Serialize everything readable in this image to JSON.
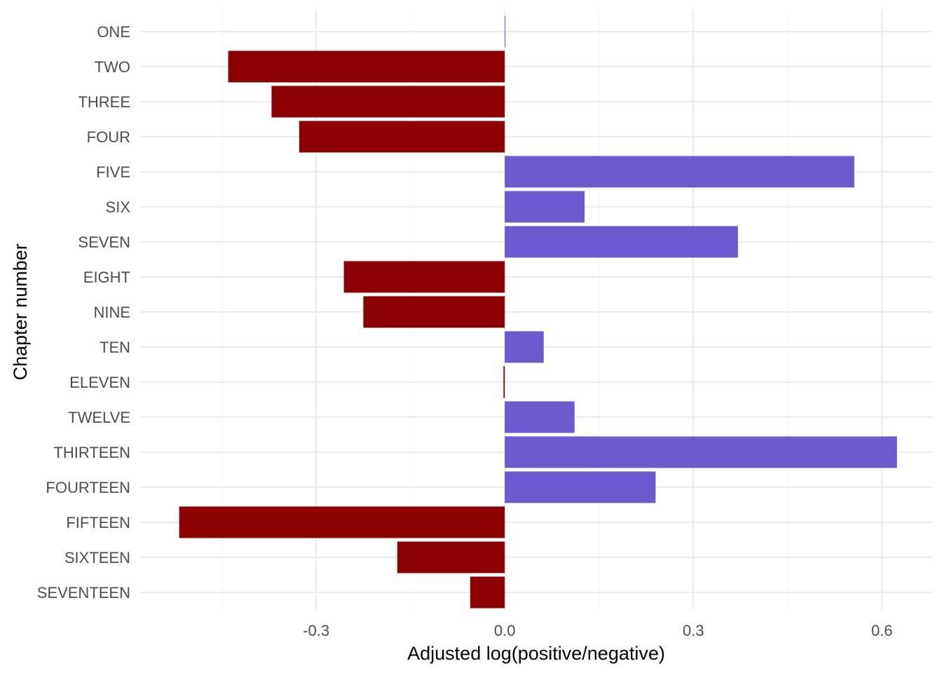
{
  "chart_data": {
    "type": "bar",
    "orientation": "horizontal",
    "title": "",
    "xlabel": "Adjusted log(positive/negative)",
    "ylabel": "Chapter number",
    "categories": [
      "ONE",
      "TWO",
      "THREE",
      "FOUR",
      "FIVE",
      "SIX",
      "SEVEN",
      "EIGHT",
      "NINE",
      "TEN",
      "ELEVEN",
      "TWELVE",
      "THIRTEEN",
      "FOURTEEN",
      "FIFTEEN",
      "SIXTEEN",
      "SEVENTEEN"
    ],
    "values": [
      0.001,
      -0.44,
      -0.371,
      -0.327,
      0.556,
      0.127,
      0.371,
      -0.256,
      -0.225,
      0.062,
      -0.002,
      0.111,
      0.624,
      0.24,
      -0.518,
      -0.171,
      -0.055
    ],
    "xlim": [
      -0.58,
      0.68
    ],
    "x_ticks": [
      -0.3,
      0.0,
      0.3,
      0.6
    ],
    "x_tick_labels": [
      "-0.3",
      "0.0",
      "0.3",
      "0.6"
    ],
    "grid": true,
    "legend": "none",
    "colors": {
      "positive": "#6A5ACD",
      "negative": "#8B0000"
    }
  }
}
